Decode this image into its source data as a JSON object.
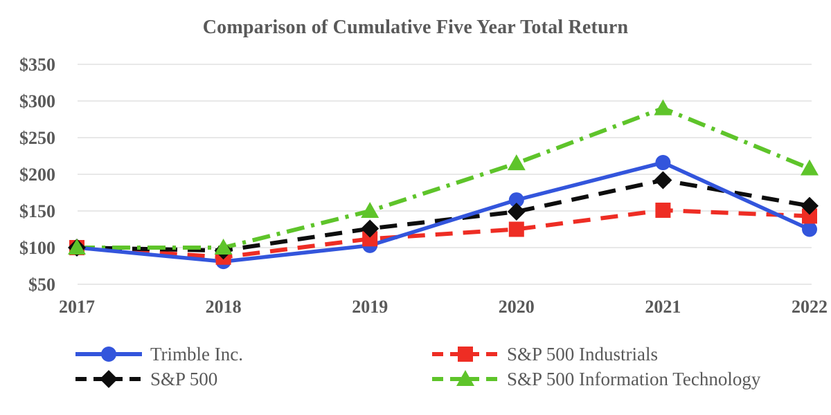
{
  "title_text": "Comparison of Cumulative Five Year Total Return",
  "colors": {
    "text": "#595959",
    "gridline": "#E8E8E8",
    "background": "#FFFFFF",
    "trimble_blue": "#3355DC",
    "sp500_black": "#0D0D0D",
    "industrials_red": "#EE2D24",
    "infotech_green": "#5EC42A"
  },
  "chart_data": {
    "type": "line",
    "title": "Comparison of Cumulative Five Year Total Return",
    "categories": [
      "2017",
      "2018",
      "2019",
      "2020",
      "2021",
      "2022"
    ],
    "xlabel": "",
    "ylabel": "",
    "y_axis": {
      "min": 50,
      "max": 350,
      "step": 50,
      "tick_prefix": "$",
      "tick_labels": [
        "$50",
        "$100",
        "$150",
        "$200",
        "$250",
        "$300",
        "$350"
      ]
    },
    "grid": "horizontal-only",
    "legend_position": "bottom-two-columns",
    "series": [
      {
        "name": "Trimble Inc.",
        "color": "#3355DC",
        "line_style": "solid",
        "marker": "circle",
        "values": [
          100,
          81,
          103,
          165,
          216,
          125
        ]
      },
      {
        "name": "S&P 500",
        "color": "#0D0D0D",
        "line_style": "dashed",
        "marker": "diamond",
        "values": [
          100,
          96,
          126,
          149,
          192,
          157
        ]
      },
      {
        "name": "S&P 500 Industrials",
        "color": "#EE2D24",
        "line_style": "dashed",
        "marker": "square",
        "values": [
          100,
          87,
          112,
          125,
          151,
          143
        ]
      },
      {
        "name": "S&P 500 Information Technology",
        "color": "#5EC42A",
        "line_style": "dash-dot",
        "marker": "triangle",
        "values": [
          100,
          100,
          150,
          215,
          290,
          208
        ]
      }
    ],
    "legend_order": [
      0,
      2,
      1,
      3
    ]
  }
}
